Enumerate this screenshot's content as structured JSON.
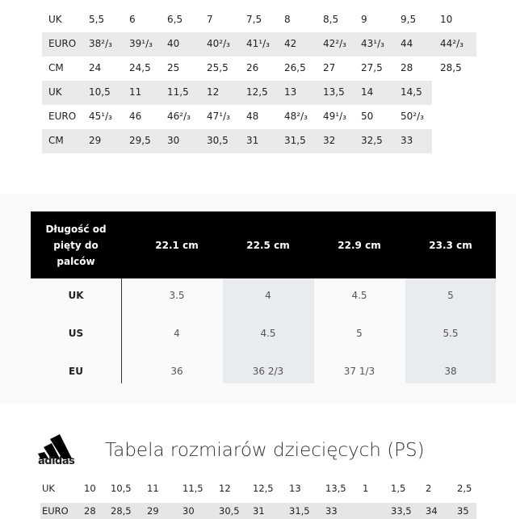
{
  "table1": {
    "rows": [
      [
        "UK",
        "5,5",
        "6",
        "6,5",
        "7",
        "7,5",
        "8",
        "8,5",
        "9",
        "9,5",
        "10"
      ],
      [
        "EURO",
        "38²/₃",
        "39¹/₃",
        "40",
        "40²/₃",
        "41¹/₃",
        "42",
        "42²/₃",
        "43¹/₃",
        "44",
        "44²/₃"
      ],
      [
        "CM",
        "24",
        "24,5",
        "25",
        "25,5",
        "26",
        "26,5",
        "27",
        "27,5",
        "28",
        "28,5"
      ],
      [
        "UK",
        "10,5",
        "11",
        "11,5",
        "12",
        "12,5",
        "13",
        "13,5",
        "14",
        "14,5"
      ],
      [
        "EURO",
        "45¹/₃",
        "46",
        "46²/₃",
        "47¹/₃",
        "48",
        "48²/₃",
        "49¹/₃",
        "50",
        "50²/₃"
      ],
      [
        "CM",
        "29",
        "29,5",
        "30",
        "30,5",
        "31",
        "31,5",
        "32",
        "32,5",
        "33"
      ]
    ]
  },
  "table2": {
    "header": [
      "Długość od pięty do palców",
      "22.1 cm",
      "22.5 cm",
      "22.9 cm",
      "23.3 cm"
    ],
    "rows": [
      [
        "UK",
        "3.5",
        "4",
        "4.5",
        "5"
      ],
      [
        "US",
        "4",
        "4.5",
        "5",
        "5.5"
      ],
      [
        "EU",
        "36",
        "36 2/3",
        "37 1/3",
        "38"
      ]
    ]
  },
  "table3": {
    "logo": "adidas",
    "title": "Tabela rozmiarów dziecięcych  (PS)",
    "rows": [
      [
        "UK",
        "10",
        "10,5",
        "11",
        "11,5",
        "12",
        "12,5",
        "13",
        "13,5",
        "1",
        "1,5",
        "2",
        "2,5"
      ],
      [
        "EURO",
        "28",
        "28,5",
        "29",
        "30",
        "30,5",
        "31",
        "31,5",
        "33",
        null,
        "33,5",
        "34",
        "35"
      ]
    ]
  }
}
